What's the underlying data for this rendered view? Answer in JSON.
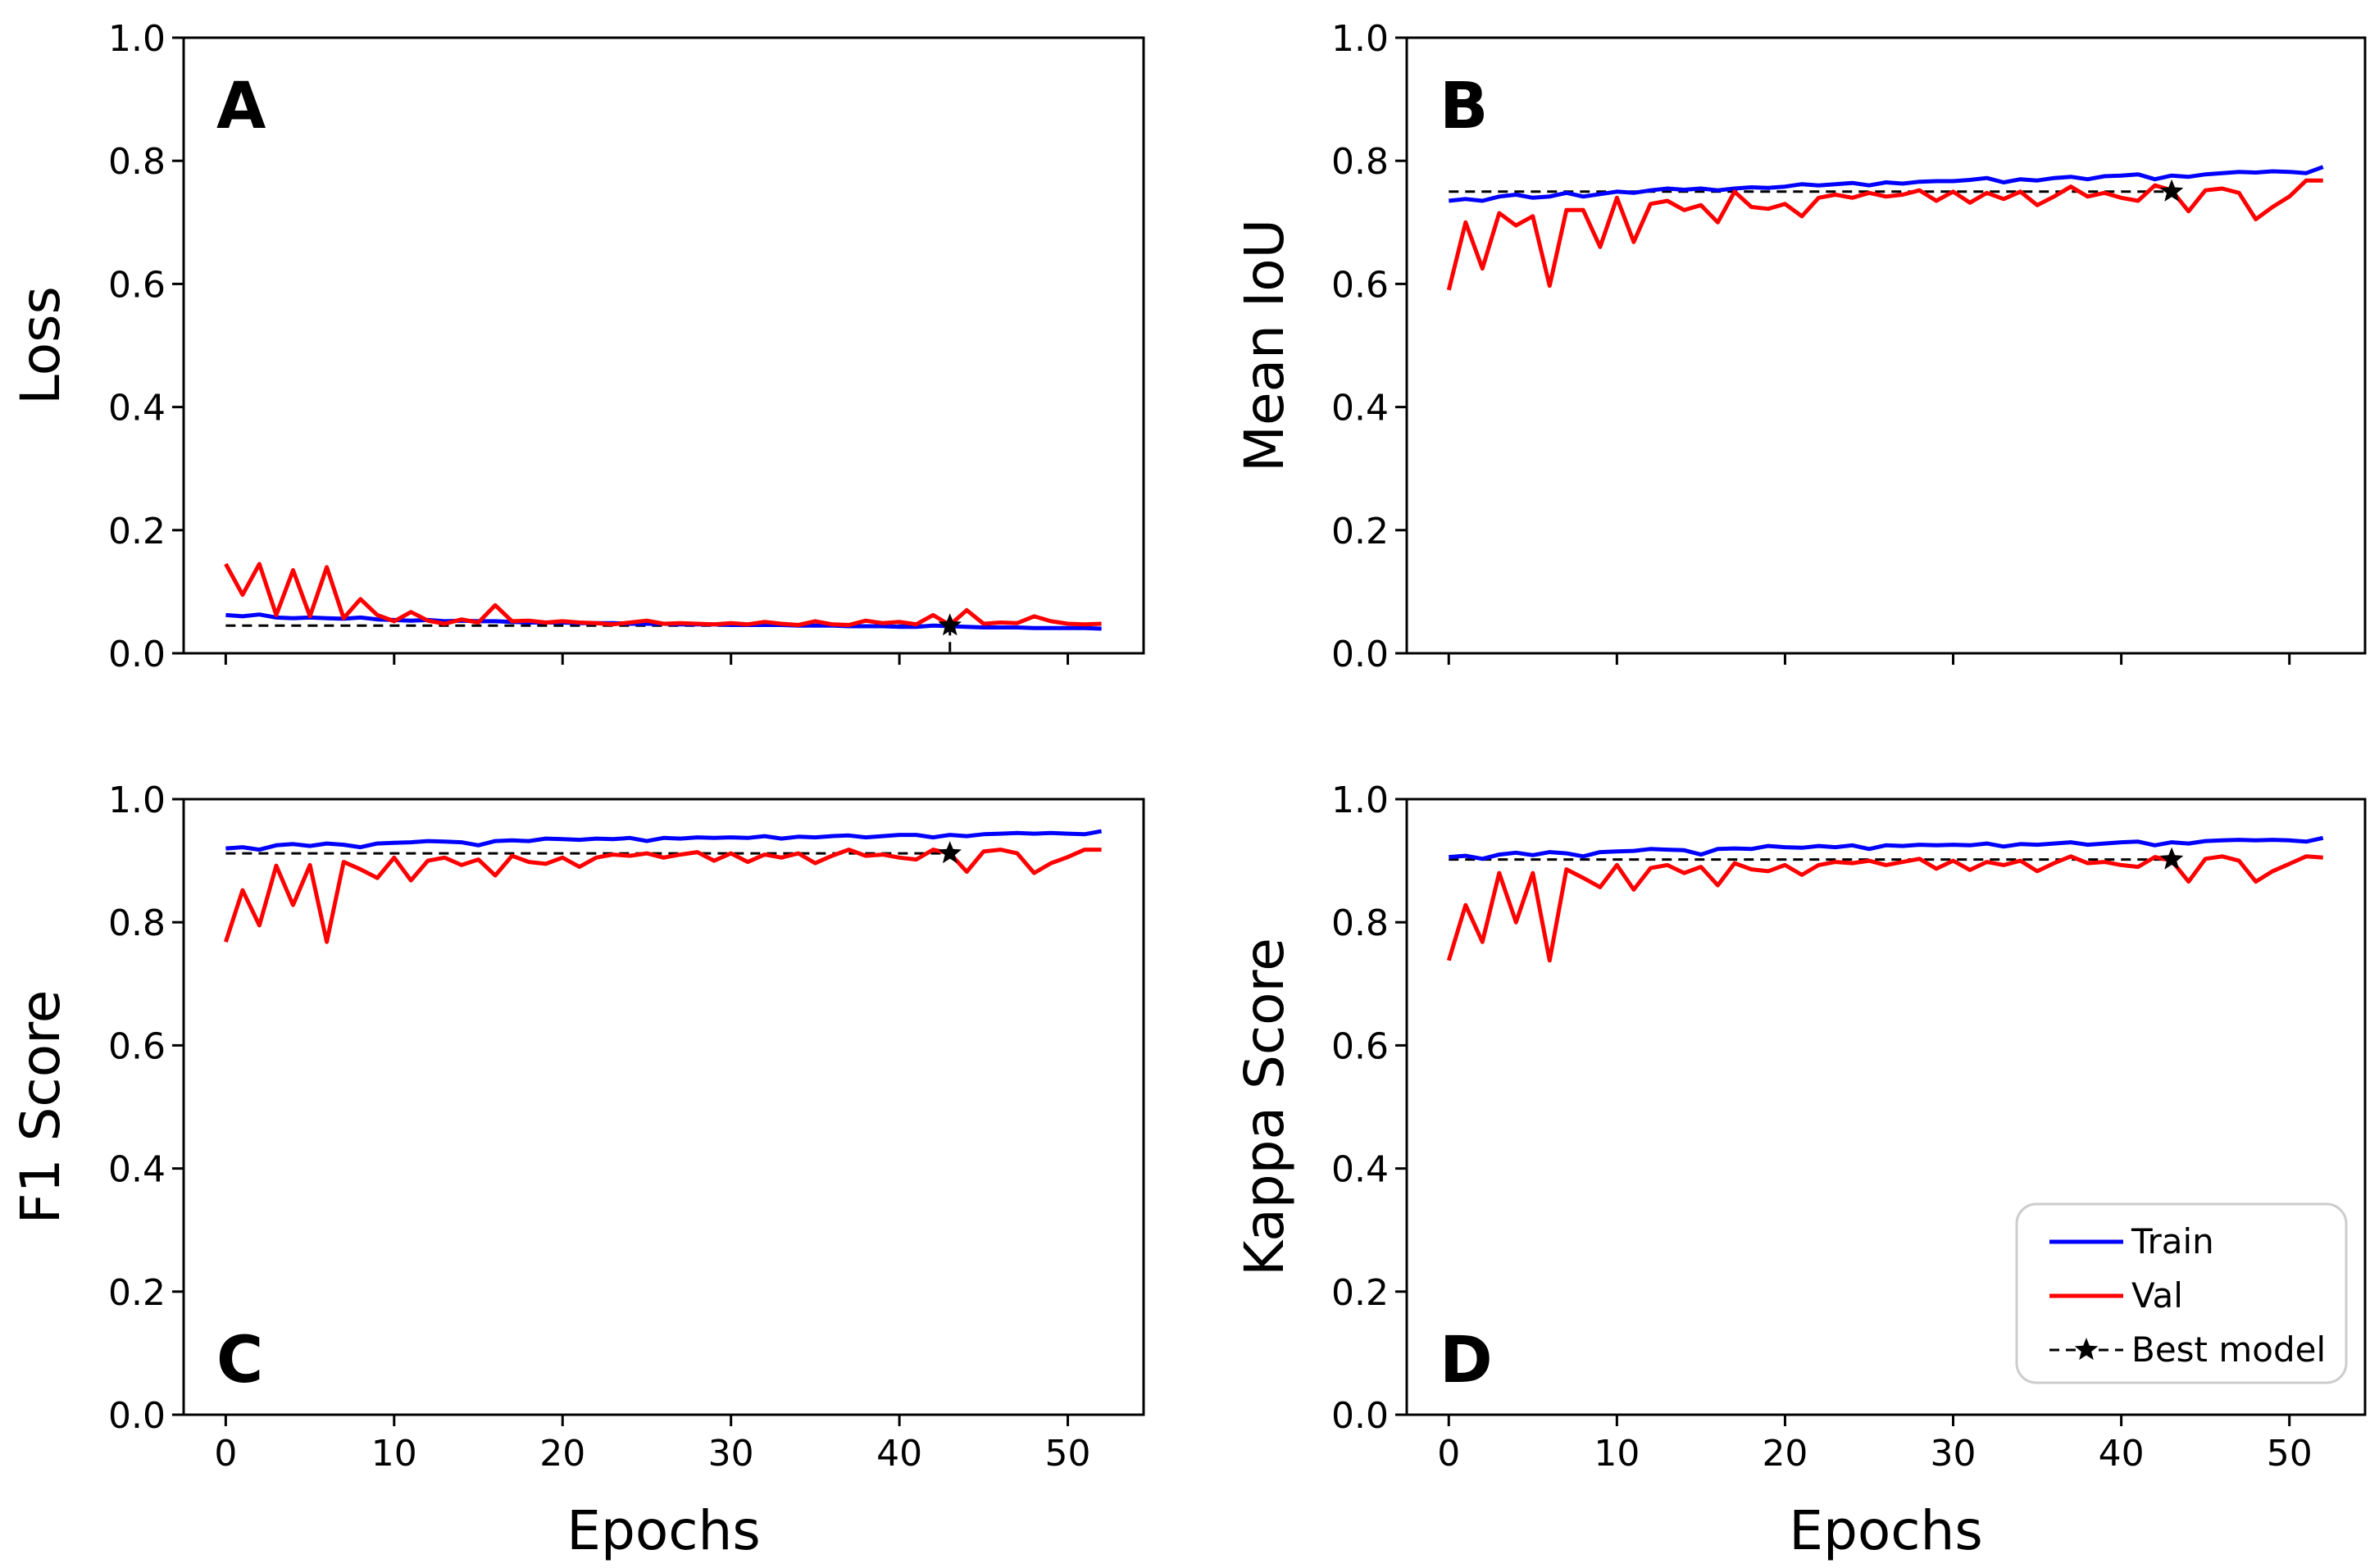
{
  "figure": {
    "x_axis_label": "Epochs",
    "legend": {
      "placement": "lower-right of panel D",
      "entries": [
        {
          "label": "Train",
          "color": "#0000ff",
          "style": "solid"
        },
        {
          "label": "Val",
          "color": "#ff0000",
          "style": "solid"
        },
        {
          "label": "Best model",
          "color": "#000000",
          "style": "dashed-star"
        }
      ]
    }
  },
  "chart_data": [
    {
      "type": "line",
      "panel": "A",
      "ylabel": "Loss",
      "xlabel": "",
      "xlim": [
        -2.5,
        54.5
      ],
      "ylim": [
        0,
        1.0
      ],
      "yticks": [
        "0.0",
        "0.2",
        "0.4",
        "0.6",
        "0.8",
        "1.0"
      ],
      "xticks": [
        0,
        10,
        20,
        30,
        40,
        50
      ],
      "show_xtick_labels": false,
      "series": [
        {
          "name": "Train",
          "color": "#0000ff",
          "values": [
            0.062,
            0.06,
            0.063,
            0.058,
            0.057,
            0.058,
            0.057,
            0.056,
            0.058,
            0.055,
            0.054,
            0.053,
            0.054,
            0.052,
            0.053,
            0.052,
            0.052,
            0.051,
            0.05,
            0.05,
            0.05,
            0.049,
            0.049,
            0.049,
            0.048,
            0.048,
            0.048,
            0.047,
            0.047,
            0.047,
            0.046,
            0.046,
            0.046,
            0.046,
            0.045,
            0.045,
            0.045,
            0.044,
            0.044,
            0.044,
            0.043,
            0.043,
            0.045,
            0.044,
            0.043,
            0.042,
            0.042,
            0.042,
            0.041,
            0.041,
            0.041,
            0.041,
            0.04
          ]
        },
        {
          "name": "Val",
          "color": "#ff0000",
          "values": [
            0.145,
            0.095,
            0.145,
            0.062,
            0.135,
            0.06,
            0.14,
            0.057,
            0.088,
            0.062,
            0.052,
            0.067,
            0.053,
            0.048,
            0.055,
            0.05,
            0.078,
            0.052,
            0.053,
            0.05,
            0.052,
            0.05,
            0.049,
            0.047,
            0.05,
            0.053,
            0.048,
            0.049,
            0.048,
            0.047,
            0.049,
            0.047,
            0.051,
            0.048,
            0.046,
            0.052,
            0.047,
            0.046,
            0.053,
            0.049,
            0.051,
            0.047,
            0.062,
            0.046,
            0.07,
            0.048,
            0.05,
            0.049,
            0.06,
            0.052,
            0.048,
            0.047,
            0.048
          ]
        }
      ],
      "best_model": {
        "epoch": 43,
        "value": 0.045,
        "drop_line": true
      }
    },
    {
      "type": "line",
      "panel": "B",
      "ylabel": "Mean IoU",
      "xlabel": "",
      "xlim": [
        -2.5,
        54.5
      ],
      "ylim": [
        0,
        1.0
      ],
      "yticks": [
        "0.0",
        "0.2",
        "0.4",
        "0.6",
        "0.8",
        "1.0"
      ],
      "xticks": [
        0,
        10,
        20,
        30,
        40,
        50
      ],
      "show_xtick_labels": false,
      "series": [
        {
          "name": "Train",
          "color": "#0000ff",
          "values": [
            0.735,
            0.738,
            0.735,
            0.742,
            0.745,
            0.74,
            0.742,
            0.748,
            0.742,
            0.746,
            0.75,
            0.748,
            0.752,
            0.755,
            0.753,
            0.755,
            0.752,
            0.755,
            0.757,
            0.756,
            0.758,
            0.762,
            0.76,
            0.762,
            0.764,
            0.76,
            0.765,
            0.763,
            0.766,
            0.767,
            0.767,
            0.769,
            0.772,
            0.765,
            0.77,
            0.768,
            0.772,
            0.774,
            0.77,
            0.775,
            0.776,
            0.778,
            0.77,
            0.776,
            0.774,
            0.778,
            0.78,
            0.782,
            0.781,
            0.783,
            0.782,
            0.78,
            0.79
          ]
        },
        {
          "name": "Val",
          "color": "#ff0000",
          "values": [
            0.59,
            0.7,
            0.625,
            0.715,
            0.695,
            0.71,
            0.597,
            0.72,
            0.72,
            0.66,
            0.74,
            0.668,
            0.73,
            0.735,
            0.72,
            0.728,
            0.7,
            0.75,
            0.725,
            0.722,
            0.73,
            0.71,
            0.74,
            0.745,
            0.74,
            0.748,
            0.742,
            0.745,
            0.752,
            0.735,
            0.75,
            0.732,
            0.748,
            0.738,
            0.75,
            0.728,
            0.742,
            0.758,
            0.742,
            0.748,
            0.74,
            0.735,
            0.76,
            0.752,
            0.718,
            0.752,
            0.755,
            0.748,
            0.705,
            0.725,
            0.742,
            0.768,
            0.768
          ]
        }
      ],
      "best_model": {
        "epoch": 43,
        "value": 0.75,
        "drop_line": false
      }
    },
    {
      "type": "line",
      "panel": "C",
      "ylabel": "F1 Score",
      "xlabel": "Epochs",
      "xlim": [
        -2.5,
        54.5
      ],
      "ylim": [
        0,
        1.0
      ],
      "yticks": [
        "0.0",
        "0.2",
        "0.4",
        "0.6",
        "0.8",
        "1.0"
      ],
      "xticks": [
        0,
        10,
        20,
        30,
        40,
        50
      ],
      "show_xtick_labels": true,
      "series": [
        {
          "name": "Train",
          "color": "#0000ff",
          "values": [
            0.92,
            0.922,
            0.918,
            0.925,
            0.927,
            0.924,
            0.928,
            0.926,
            0.922,
            0.928,
            0.929,
            0.93,
            0.932,
            0.931,
            0.93,
            0.925,
            0.932,
            0.933,
            0.932,
            0.936,
            0.935,
            0.934,
            0.936,
            0.935,
            0.937,
            0.932,
            0.937,
            0.936,
            0.938,
            0.937,
            0.938,
            0.937,
            0.94,
            0.936,
            0.939,
            0.938,
            0.94,
            0.941,
            0.938,
            0.94,
            0.942,
            0.942,
            0.938,
            0.942,
            0.94,
            0.943,
            0.944,
            0.945,
            0.944,
            0.945,
            0.944,
            0.943,
            0.948
          ]
        },
        {
          "name": "Val",
          "color": "#ff0000",
          "values": [
            0.768,
            0.852,
            0.795,
            0.892,
            0.828,
            0.893,
            0.768,
            0.898,
            0.886,
            0.872,
            0.905,
            0.868,
            0.9,
            0.905,
            0.893,
            0.902,
            0.876,
            0.908,
            0.898,
            0.895,
            0.905,
            0.89,
            0.905,
            0.91,
            0.908,
            0.912,
            0.905,
            0.91,
            0.914,
            0.9,
            0.912,
            0.898,
            0.91,
            0.905,
            0.912,
            0.896,
            0.908,
            0.918,
            0.908,
            0.91,
            0.905,
            0.902,
            0.918,
            0.912,
            0.882,
            0.915,
            0.918,
            0.912,
            0.88,
            0.896,
            0.906,
            0.918,
            0.918
          ]
        }
      ],
      "best_model": {
        "epoch": 43,
        "value": 0.912,
        "drop_line": false
      }
    },
    {
      "type": "line",
      "panel": "D",
      "ylabel": "Kappa Score",
      "xlabel": "Epochs",
      "xlim": [
        -2.5,
        54.5
      ],
      "ylim": [
        0,
        1.0
      ],
      "yticks": [
        "0.0",
        "0.2",
        "0.4",
        "0.6",
        "0.8",
        "1.0"
      ],
      "xticks": [
        0,
        10,
        20,
        30,
        40,
        50
      ],
      "show_xtick_labels": true,
      "series": [
        {
          "name": "Train",
          "color": "#0000ff",
          "values": [
            0.906,
            0.908,
            0.903,
            0.91,
            0.913,
            0.909,
            0.914,
            0.912,
            0.907,
            0.914,
            0.915,
            0.916,
            0.919,
            0.918,
            0.917,
            0.91,
            0.919,
            0.92,
            0.919,
            0.924,
            0.922,
            0.921,
            0.924,
            0.922,
            0.925,
            0.919,
            0.925,
            0.924,
            0.926,
            0.925,
            0.926,
            0.925,
            0.928,
            0.923,
            0.927,
            0.926,
            0.928,
            0.93,
            0.926,
            0.928,
            0.93,
            0.931,
            0.925,
            0.93,
            0.928,
            0.932,
            0.933,
            0.934,
            0.933,
            0.934,
            0.933,
            0.931,
            0.937
          ]
        },
        {
          "name": "Val",
          "color": "#ff0000",
          "values": [
            0.738,
            0.828,
            0.768,
            0.88,
            0.8,
            0.88,
            0.738,
            0.886,
            0.872,
            0.857,
            0.893,
            0.853,
            0.888,
            0.893,
            0.88,
            0.89,
            0.86,
            0.896,
            0.886,
            0.883,
            0.893,
            0.877,
            0.893,
            0.898,
            0.896,
            0.9,
            0.893,
            0.898,
            0.903,
            0.887,
            0.9,
            0.885,
            0.898,
            0.893,
            0.9,
            0.883,
            0.896,
            0.907,
            0.896,
            0.898,
            0.893,
            0.89,
            0.906,
            0.9,
            0.866,
            0.903,
            0.907,
            0.9,
            0.866,
            0.883,
            0.895,
            0.907,
            0.905
          ]
        }
      ],
      "best_model": {
        "epoch": 43,
        "value": 0.902,
        "drop_line": false
      }
    }
  ]
}
